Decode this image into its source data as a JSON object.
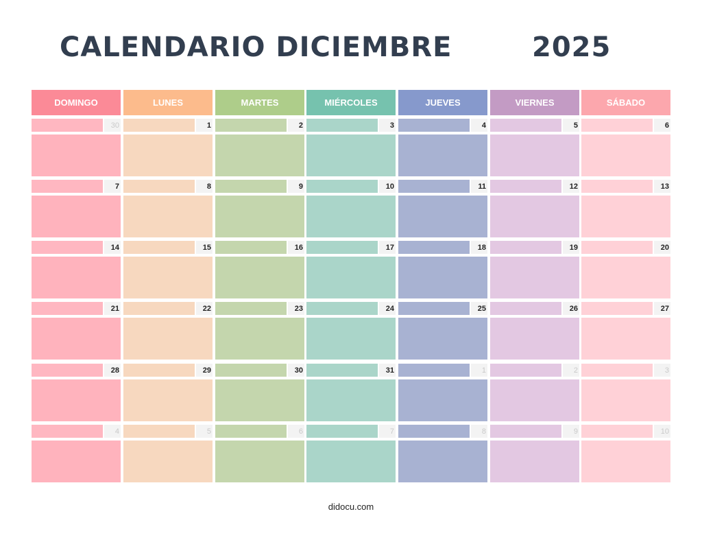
{
  "title": {
    "month": "CALENDARIO DICIEMBRE",
    "year": "2025"
  },
  "colors": {
    "header": [
      "#fb8a97",
      "#fcbb8c",
      "#aecd8a",
      "#76c2ae",
      "#8699cc",
      "#c39bc4",
      "#fca7ad"
    ],
    "bar": [
      "#ffb7c1",
      "#f7d8bf",
      "#c4d6ad",
      "#aad5c9",
      "#a8b2d2",
      "#e3c8e2",
      "#ffd1d7"
    ],
    "body": [
      "#ffb3bd",
      "#f7d8bf",
      "#c4d6ad",
      "#aad5c9",
      "#a8b2d2",
      "#e3c8e2",
      "#ffd1d7"
    ]
  },
  "weekdays": [
    "DOMINGO",
    "LUNES",
    "MARTES",
    "MIÉRCOLES",
    "JUEVES",
    "VIERNES",
    "SÁBADO"
  ],
  "weeks": [
    [
      {
        "day": "30",
        "other": true
      },
      {
        "day": "1",
        "other": false
      },
      {
        "day": "2",
        "other": false
      },
      {
        "day": "3",
        "other": false
      },
      {
        "day": "4",
        "other": false
      },
      {
        "day": "5",
        "other": false
      },
      {
        "day": "6",
        "other": false
      }
    ],
    [
      {
        "day": "7",
        "other": false
      },
      {
        "day": "8",
        "other": false
      },
      {
        "day": "9",
        "other": false
      },
      {
        "day": "10",
        "other": false
      },
      {
        "day": "11",
        "other": false
      },
      {
        "day": "12",
        "other": false
      },
      {
        "day": "13",
        "other": false
      }
    ],
    [
      {
        "day": "14",
        "other": false
      },
      {
        "day": "15",
        "other": false
      },
      {
        "day": "16",
        "other": false
      },
      {
        "day": "17",
        "other": false
      },
      {
        "day": "18",
        "other": false
      },
      {
        "day": "19",
        "other": false
      },
      {
        "day": "20",
        "other": false
      }
    ],
    [
      {
        "day": "21",
        "other": false
      },
      {
        "day": "22",
        "other": false
      },
      {
        "day": "23",
        "other": false
      },
      {
        "day": "24",
        "other": false
      },
      {
        "day": "25",
        "other": false
      },
      {
        "day": "26",
        "other": false
      },
      {
        "day": "27",
        "other": false
      }
    ],
    [
      {
        "day": "28",
        "other": false
      },
      {
        "day": "29",
        "other": false
      },
      {
        "day": "30",
        "other": false
      },
      {
        "day": "31",
        "other": false
      },
      {
        "day": "1",
        "other": true
      },
      {
        "day": "2",
        "other": true
      },
      {
        "day": "3",
        "other": true
      }
    ],
    [
      {
        "day": "4",
        "other": true
      },
      {
        "day": "5",
        "other": true
      },
      {
        "day": "6",
        "other": true
      },
      {
        "day": "7",
        "other": true
      },
      {
        "day": "8",
        "other": true
      },
      {
        "day": "9",
        "other": true
      },
      {
        "day": "10",
        "other": true
      }
    ]
  ],
  "footer": "didocu.com"
}
